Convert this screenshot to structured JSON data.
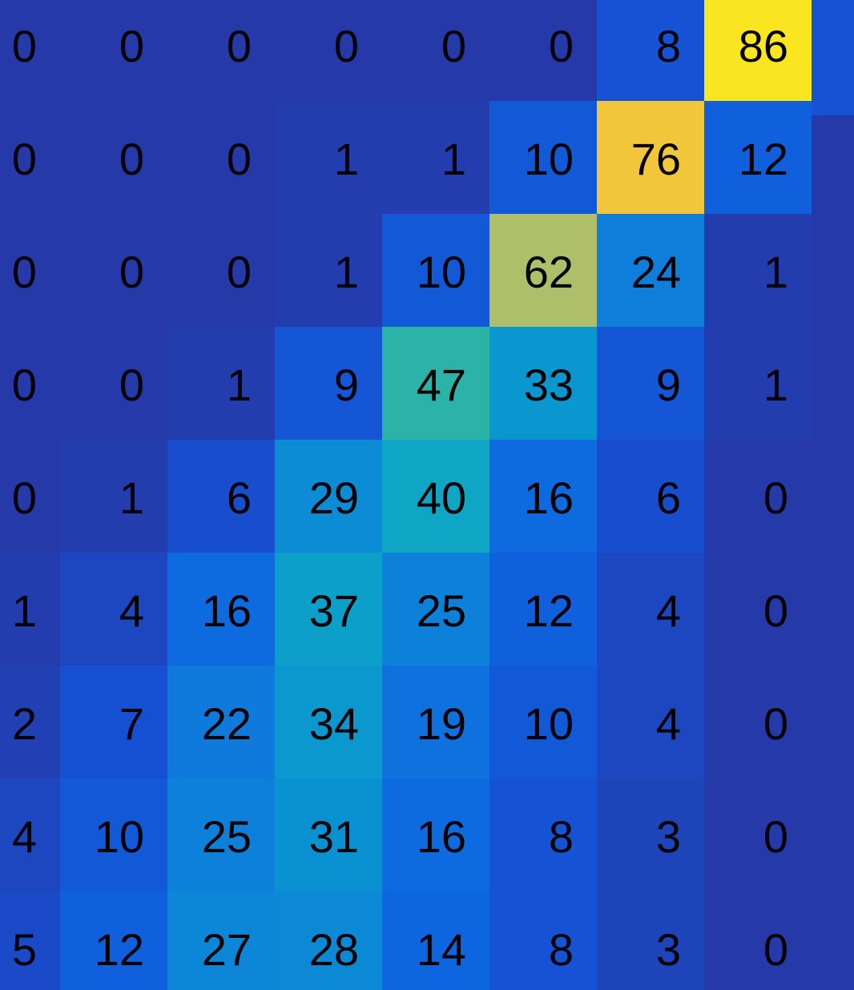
{
  "chart_data": {
    "type": "heatmap",
    "title": "",
    "xlabel": "",
    "ylabel": "",
    "colormap": "parula",
    "value_range": [
      0,
      86
    ],
    "rows": [
      {
        "values": [
          0,
          0,
          0,
          0,
          0,
          0,
          8,
          86
        ]
      },
      {
        "values": [
          0,
          0,
          0,
          1,
          1,
          10,
          76,
          12
        ]
      },
      {
        "values": [
          0,
          0,
          0,
          1,
          10,
          62,
          24,
          1
        ]
      },
      {
        "values": [
          0,
          0,
          1,
          9,
          47,
          33,
          9,
          1
        ]
      },
      {
        "values": [
          0,
          1,
          6,
          29,
          40,
          16,
          6,
          0
        ]
      },
      {
        "values": [
          1,
          4,
          16,
          37,
          25,
          12,
          4,
          0
        ]
      },
      {
        "values": [
          2,
          7,
          22,
          34,
          19,
          10,
          4,
          0
        ]
      },
      {
        "values": [
          4,
          10,
          25,
          31,
          16,
          8,
          3,
          0
        ]
      },
      {
        "values": [
          5,
          12,
          27,
          28,
          14,
          8,
          3,
          0
        ]
      }
    ],
    "label_colors": {
      "dark_bg_text": "#000000",
      "light_bg_text": "#000000"
    }
  }
}
